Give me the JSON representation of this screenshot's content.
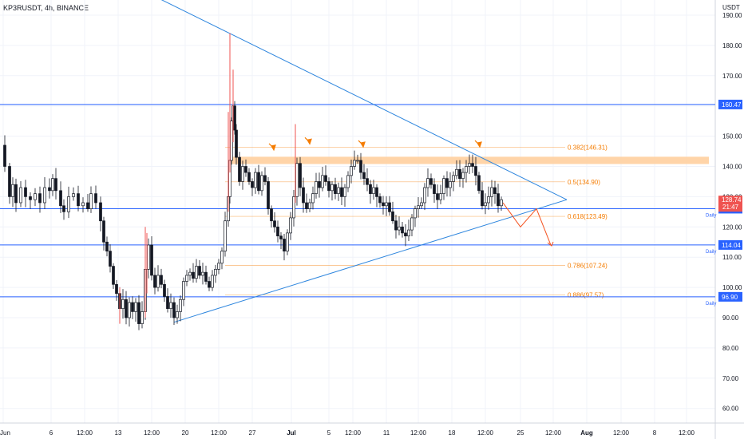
{
  "header": {
    "symbol": "KP3RUSDT, 4h, BINANCE",
    "currency": "USDT"
  },
  "colors": {
    "up": "#ffffff",
    "down": "#131722",
    "wick": "#131722",
    "spike": "#ef5350",
    "line": "#2962ff",
    "fib": "#f57c00",
    "zone": "#ffcc99",
    "grid": "#f0f3fa",
    "projection": "#f4511e",
    "badge_last": "#ef5350",
    "badge_level": "#2962ff"
  },
  "chart_data": {
    "type": "candlestick",
    "ylim": [
      55,
      198
    ],
    "y_ticks": [
      60,
      70,
      80,
      90,
      100,
      110,
      120,
      130,
      140,
      150,
      160,
      170,
      180,
      190
    ],
    "x_ticks": [
      "Jun",
      "6",
      "12:00",
      "13",
      "12:00",
      "20",
      "12:00",
      "27",
      "Jul",
      "5",
      "12:00",
      "11",
      "12:00",
      "18",
      "12:00",
      "25",
      "12:00",
      "Aug",
      "12:00",
      "8",
      "12:00"
    ],
    "x_tick_bold": [
      false,
      false,
      false,
      false,
      false,
      false,
      false,
      false,
      true,
      false,
      false,
      false,
      false,
      false,
      false,
      false,
      false,
      true,
      false,
      false,
      false
    ],
    "series_points": [
      [
        0,
        147
      ],
      [
        6,
        140
      ],
      [
        12,
        130
      ],
      [
        16,
        134
      ],
      [
        20,
        128
      ],
      [
        26,
        133
      ],
      [
        32,
        130
      ],
      [
        38,
        129
      ],
      [
        44,
        131
      ],
      [
        50,
        128
      ],
      [
        56,
        133
      ],
      [
        62,
        132
      ],
      [
        66,
        136
      ],
      [
        70,
        132
      ],
      [
        76,
        127
      ],
      [
        80,
        125
      ],
      [
        86,
        130
      ],
      [
        92,
        131
      ],
      [
        98,
        127
      ],
      [
        104,
        128
      ],
      [
        110,
        126
      ],
      [
        114,
        131
      ],
      [
        120,
        128
      ],
      [
        126,
        122
      ],
      [
        130,
        115
      ],
      [
        134,
        112
      ],
      [
        138,
        107
      ],
      [
        142,
        101
      ],
      [
        146,
        98
      ],
      [
        150,
        93
      ],
      [
        154,
        96
      ],
      [
        158,
        90
      ],
      [
        162,
        95
      ],
      [
        166,
        92
      ],
      [
        170,
        95
      ],
      [
        174,
        88
      ],
      [
        178,
        92
      ],
      [
        182,
        106
      ],
      [
        186,
        114
      ],
      [
        190,
        104
      ],
      [
        194,
        100
      ],
      [
        198,
        104
      ],
      [
        202,
        101
      ],
      [
        206,
        97
      ],
      [
        210,
        93
      ],
      [
        214,
        95
      ],
      [
        218,
        90
      ],
      [
        222,
        92
      ],
      [
        226,
        96
      ],
      [
        230,
        102
      ],
      [
        234,
        104
      ],
      [
        238,
        105
      ],
      [
        242,
        103
      ],
      [
        246,
        107
      ],
      [
        250,
        104
      ],
      [
        254,
        105
      ],
      [
        258,
        102
      ],
      [
        262,
        100
      ],
      [
        266,
        104
      ],
      [
        270,
        106
      ],
      [
        274,
        108
      ],
      [
        278,
        112
      ],
      [
        282,
        122
      ],
      [
        286,
        130
      ],
      [
        288,
        142
      ],
      [
        290,
        155
      ],
      [
        292,
        160
      ],
      [
        294,
        152
      ],
      [
        296,
        143
      ],
      [
        300,
        135
      ],
      [
        304,
        140
      ],
      [
        308,
        138
      ],
      [
        312,
        135
      ],
      [
        316,
        133
      ],
      [
        320,
        138
      ],
      [
        324,
        132
      ],
      [
        328,
        137
      ],
      [
        332,
        135
      ],
      [
        336,
        126
      ],
      [
        340,
        122
      ],
      [
        344,
        120
      ],
      [
        348,
        117
      ],
      [
        352,
        116
      ],
      [
        356,
        112
      ],
      [
        360,
        118
      ],
      [
        364,
        123
      ],
      [
        368,
        130
      ],
      [
        372,
        141
      ],
      [
        376,
        133
      ],
      [
        380,
        128
      ],
      [
        384,
        126
      ],
      [
        388,
        128
      ],
      [
        392,
        131
      ],
      [
        396,
        135
      ],
      [
        400,
        133
      ],
      [
        404,
        137
      ],
      [
        408,
        135
      ],
      [
        412,
        132
      ],
      [
        416,
        134
      ],
      [
        420,
        131
      ],
      [
        424,
        133
      ],
      [
        428,
        130
      ],
      [
        432,
        133
      ],
      [
        436,
        137
      ],
      [
        440,
        140
      ],
      [
        444,
        142
      ],
      [
        448,
        142
      ],
      [
        452,
        138
      ],
      [
        456,
        136
      ],
      [
        460,
        134
      ],
      [
        464,
        131
      ],
      [
        468,
        133
      ],
      [
        472,
        130
      ],
      [
        476,
        128
      ],
      [
        480,
        127
      ],
      [
        484,
        128
      ],
      [
        488,
        125
      ],
      [
        492,
        122
      ],
      [
        496,
        119
      ],
      [
        500,
        120
      ],
      [
        504,
        118
      ],
      [
        508,
        117
      ],
      [
        512,
        119
      ],
      [
        516,
        123
      ],
      [
        520,
        126
      ],
      [
        524,
        127
      ],
      [
        528,
        128
      ],
      [
        532,
        133
      ],
      [
        536,
        136
      ],
      [
        540,
        134
      ],
      [
        544,
        131
      ],
      [
        548,
        129
      ],
      [
        552,
        131
      ],
      [
        556,
        136
      ],
      [
        560,
        133
      ],
      [
        564,
        135
      ],
      [
        568,
        137
      ],
      [
        572,
        139
      ],
      [
        576,
        136
      ],
      [
        580,
        138
      ],
      [
        584,
        140
      ],
      [
        588,
        141
      ],
      [
        592,
        140
      ],
      [
        596,
        137
      ],
      [
        600,
        132
      ],
      [
        604,
        127
      ],
      [
        608,
        128
      ],
      [
        612,
        130
      ],
      [
        616,
        133
      ],
      [
        620,
        131
      ],
      [
        624,
        127
      ],
      [
        628,
        129
      ]
    ],
    "spikes": [
      {
        "x": 150,
        "high": 100,
        "low": 88
      },
      {
        "x": 182,
        "high": 120,
        "low": 90
      },
      {
        "x": 184,
        "high": 118,
        "low": 98
      },
      {
        "x": 286,
        "high": 158,
        "low": 125
      },
      {
        "x": 292,
        "high": 172,
        "low": 148
      },
      {
        "x": 370,
        "high": 154,
        "low": 128
      }
    ],
    "high_wick": {
      "x": 288,
      "high": 184,
      "low": 138
    },
    "horizontal_levels": [
      {
        "price": 160.47,
        "label": "160.47",
        "tag": ""
      },
      {
        "price": 126.03,
        "label": "126.03",
        "tag": "Daily"
      },
      {
        "price": 114.04,
        "label": "114.04",
        "tag": "Daily"
      },
      {
        "price": 96.9,
        "label": "96.90",
        "tag": "Daily"
      }
    ],
    "fib_levels": [
      {
        "price": 146.31,
        "label": "0.382(146.31)"
      },
      {
        "price": 134.9,
        "label": "0.5(134.90)"
      },
      {
        "price": 123.49,
        "label": "0.618(123.49)"
      },
      {
        "price": 107.24,
        "label": "0.786(107.24)"
      },
      {
        "price": 97.57,
        "label": "0.886(97.57)"
      }
    ],
    "last_price": {
      "price": 128.74,
      "label": "128.74",
      "countdown": "21:47"
    },
    "triangle": {
      "upper": [
        {
          "x": 180,
          "price": 198
        },
        {
          "x": 710,
          "price": 129
        }
      ],
      "lower": [
        {
          "x": 218,
          "price": 88.5
        },
        {
          "x": 710,
          "price": 129
        }
      ]
    },
    "zone": {
      "x_from": 290,
      "x_to": 888,
      "top": 143.2,
      "bottom": 140.8
    },
    "projection": [
      {
        "x": 630,
        "price": 128
      },
      {
        "x": 652,
        "price": 120
      },
      {
        "x": 672,
        "price": 126
      },
      {
        "x": 690,
        "price": 114
      }
    ],
    "markers": [
      {
        "x": 341,
        "price": 146.5
      },
      {
        "x": 386,
        "price": 148.5
      },
      {
        "x": 453,
        "price": 147.5
      },
      {
        "x": 599,
        "price": 147.5
      }
    ]
  }
}
